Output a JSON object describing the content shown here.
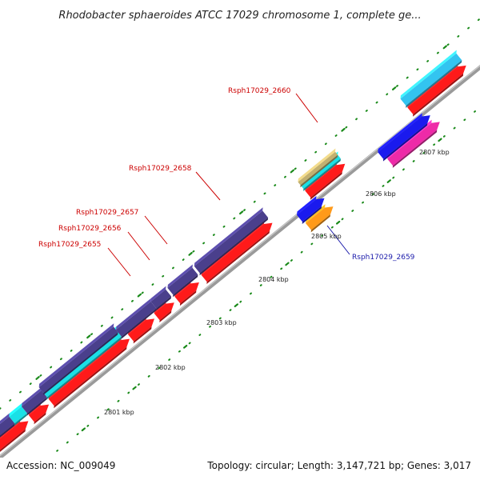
{
  "title": "Rhodobacter sphaeroides ATCC 17029 chromosome 1, complete ge...",
  "footer": {
    "accession": "Accession: NC_009049",
    "summary": "Topology: circular; Length: 3,147,721 bp; Genes: 3,017"
  },
  "scale_labels": [
    "2801 kbp",
    "2802 kbp",
    "2803 kbp",
    "2804 kbp",
    "2805 kbp",
    "2806 kbp",
    "2807 kbp"
  ],
  "gene_labels": [
    {
      "text": "Rsph17029_2655",
      "color": "#cc0000"
    },
    {
      "text": "Rsph17029_2656",
      "color": "#cc0000"
    },
    {
      "text": "Rsph17029_2657",
      "color": "#cc0000"
    },
    {
      "text": "Rsph17029_2658",
      "color": "#cc0000"
    },
    {
      "text": "Rsph17029_2660",
      "color": "#cc0000"
    },
    {
      "text": "Rsph17029_2659",
      "color": "#1a1aaa"
    }
  ],
  "colors": {
    "backbone": "#9a9a9a",
    "gene_red": "#ff1a1a",
    "gene_purple": "#4a3f8c",
    "gene_cyan": "#1ae0e6",
    "gene_skyblue": "#33c4f0",
    "gene_blue": "#1a1aee",
    "gene_orange": "#ff9a1a",
    "gene_magenta": "#ee2aa8",
    "gene_olive": "#c2b070",
    "tick_green": "#1a8a1a"
  }
}
